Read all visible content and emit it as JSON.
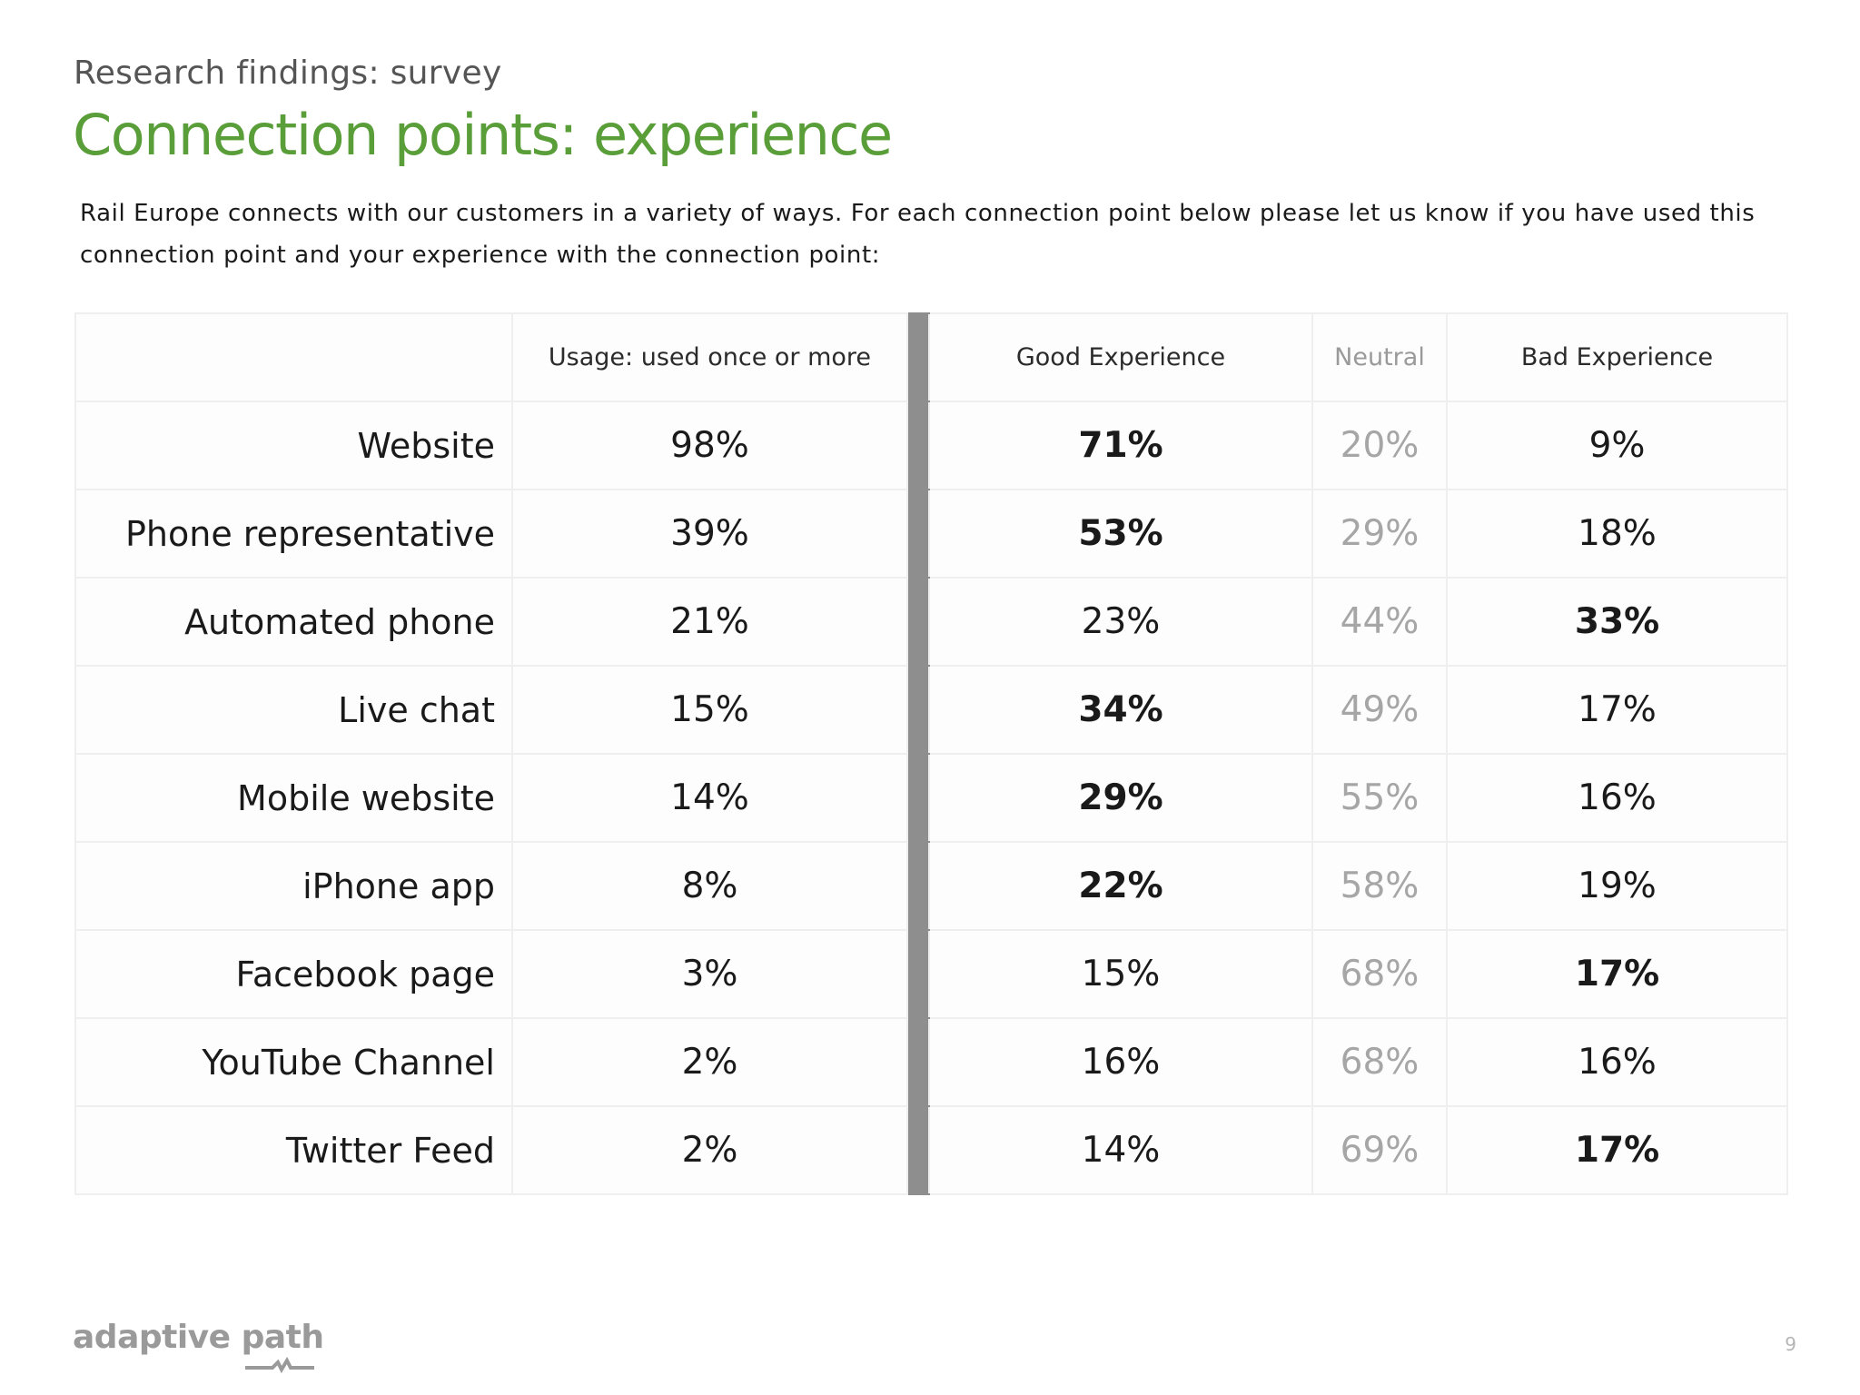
{
  "header": {
    "kicker": "Research findings: survey",
    "title": "Connection points: experience",
    "intro": "Rail Europe connects with our customers in a variety of ways. For each connection point below please let us know if you have used this connection point and your experience with the connection point:"
  },
  "table": {
    "columns": [
      "",
      "Usage: used once or more",
      "Good Experience",
      "Neutral",
      "Bad Experience"
    ],
    "rows": [
      {
        "label": "Website",
        "usage": "98%",
        "good": "71%",
        "neutral": "20%",
        "bad": "9%",
        "emphasis": "good"
      },
      {
        "label": "Phone representative",
        "usage": "39%",
        "good": "53%",
        "neutral": "29%",
        "bad": "18%",
        "emphasis": "good"
      },
      {
        "label": "Automated phone",
        "usage": "21%",
        "good": "23%",
        "neutral": "44%",
        "bad": "33%",
        "emphasis": "bad"
      },
      {
        "label": "Live chat",
        "usage": "15%",
        "good": "34%",
        "neutral": "49%",
        "bad": "17%",
        "emphasis": "good"
      },
      {
        "label": "Mobile website",
        "usage": "14%",
        "good": "29%",
        "neutral": "55%",
        "bad": "16%",
        "emphasis": "good"
      },
      {
        "label": "iPhone app",
        "usage": "8%",
        "good": "22%",
        "neutral": "58%",
        "bad": "19%",
        "emphasis": "good"
      },
      {
        "label": "Facebook page",
        "usage": "3%",
        "good": "15%",
        "neutral": "68%",
        "bad": "17%",
        "emphasis": "bad"
      },
      {
        "label": "YouTube Channel",
        "usage": "2%",
        "good": "16%",
        "neutral": "68%",
        "bad": "16%",
        "emphasis": "none"
      },
      {
        "label": "Twitter Feed",
        "usage": "2%",
        "good": "14%",
        "neutral": "69%",
        "bad": "17%",
        "emphasis": "bad"
      }
    ]
  },
  "footer": {
    "logo_text": "adaptive path",
    "page_number": "9"
  },
  "colors": {
    "title_green": "#5a9e3a",
    "divider_gray": "#8e8e8e",
    "neutral_text": "#a6a6a6"
  }
}
